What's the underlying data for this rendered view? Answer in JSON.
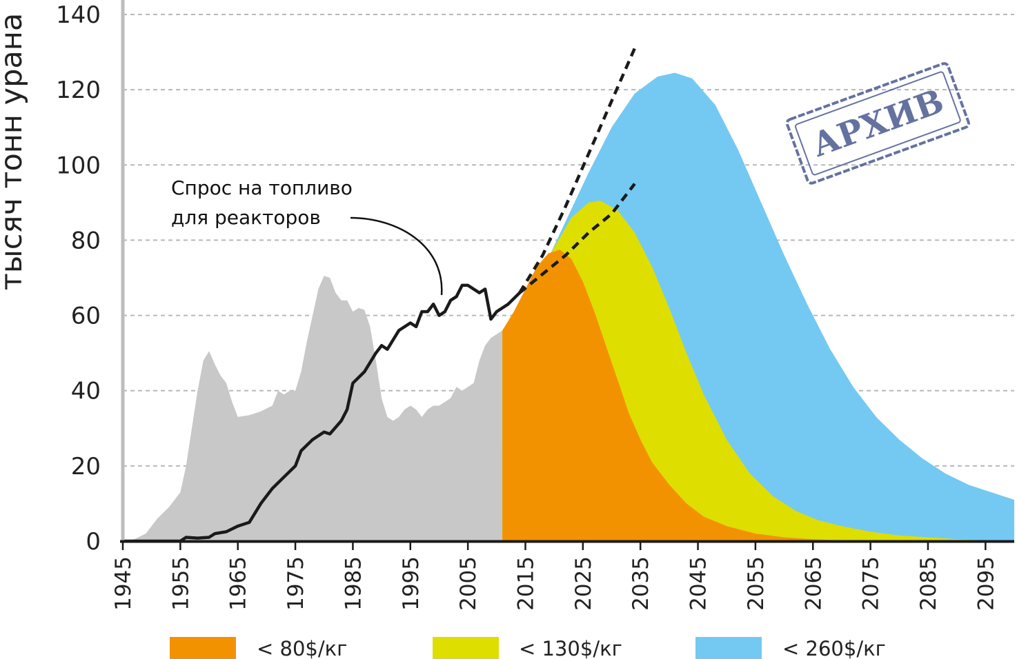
{
  "chart_data": {
    "type": "area",
    "ylabel": "тысяч тонн урана",
    "xlabel": "",
    "xlim": [
      1945,
      2100
    ],
    "ylim": [
      0,
      140
    ],
    "x_ticks": [
      "1945",
      "1955",
      "1965",
      "1975",
      "1985",
      "1995",
      "2005",
      "2015",
      "2025",
      "2035",
      "2045",
      "2055",
      "2065",
      "2075",
      "2085",
      "2095"
    ],
    "y_ticks": [
      "0",
      "20",
      "40",
      "60",
      "80",
      "100",
      "120",
      "140"
    ],
    "grid": "horizontal dashed",
    "legend_position": "bottom",
    "annotation": {
      "line1": "Спрос на топливо",
      "line2": "для реакторов"
    },
    "stamp": "АРХИВ",
    "colors": {
      "historical": "#c8c8c8",
      "lt80": "#f39200",
      "lt130": "#dede00",
      "lt260": "#74c9f2",
      "demand": "#1a1a1a",
      "stamp": "#4a5a90"
    },
    "series": [
      {
        "name": "",
        "role": "historical_production",
        "points": [
          [
            1945,
            0
          ],
          [
            1947,
            0.5
          ],
          [
            1949,
            2
          ],
          [
            1951,
            6
          ],
          [
            1953,
            9
          ],
          [
            1955,
            13
          ],
          [
            1956,
            20
          ],
          [
            1957,
            30
          ],
          [
            1958,
            40
          ],
          [
            1959,
            48
          ],
          [
            1960,
            50.5
          ],
          [
            1961,
            47
          ],
          [
            1962,
            44
          ],
          [
            1963,
            42
          ],
          [
            1964,
            37
          ],
          [
            1965,
            33
          ],
          [
            1967,
            33.5
          ],
          [
            1969,
            34.5
          ],
          [
            1971,
            36
          ],
          [
            1972,
            40
          ],
          [
            1973,
            39
          ],
          [
            1974,
            40
          ],
          [
            1975,
            40
          ],
          [
            1976,
            45
          ],
          [
            1977,
            53
          ],
          [
            1978,
            60
          ],
          [
            1979,
            67
          ],
          [
            1980,
            70.5
          ],
          [
            1981,
            70
          ],
          [
            1982,
            66
          ],
          [
            1983,
            64
          ],
          [
            1984,
            64
          ],
          [
            1985,
            61
          ],
          [
            1986,
            62
          ],
          [
            1987,
            61.5
          ],
          [
            1988,
            57
          ],
          [
            1989,
            48
          ],
          [
            1990,
            38
          ],
          [
            1991,
            33
          ],
          [
            1992,
            32
          ],
          [
            1993,
            33
          ],
          [
            1994,
            35
          ],
          [
            1995,
            36
          ],
          [
            1996,
            35
          ],
          [
            1997,
            33
          ],
          [
            1998,
            35
          ],
          [
            1999,
            36
          ],
          [
            2000,
            36
          ],
          [
            2001,
            37
          ],
          [
            2002,
            38
          ],
          [
            2003,
            41
          ],
          [
            2004,
            40
          ],
          [
            2005,
            41
          ],
          [
            2006,
            42
          ],
          [
            2007,
            48
          ],
          [
            2008,
            52
          ],
          [
            2009,
            54
          ],
          [
            2010,
            55
          ],
          [
            2011,
            56
          ]
        ]
      },
      {
        "name": "< 260$/кг",
        "points": [
          [
            2011,
            56
          ],
          [
            2014,
            62
          ],
          [
            2018,
            72
          ],
          [
            2022,
            85
          ],
          [
            2026,
            98
          ],
          [
            2030,
            110
          ],
          [
            2034,
            119
          ],
          [
            2038,
            123.5
          ],
          [
            2041,
            124.5
          ],
          [
            2044,
            123
          ],
          [
            2048,
            116
          ],
          [
            2052,
            104
          ],
          [
            2056,
            90
          ],
          [
            2060,
            76
          ],
          [
            2064,
            63
          ],
          [
            2068,
            51
          ],
          [
            2072,
            41
          ],
          [
            2076,
            33
          ],
          [
            2080,
            27
          ],
          [
            2084,
            22
          ],
          [
            2088,
            18
          ],
          [
            2092,
            15
          ],
          [
            2096,
            13
          ],
          [
            2100,
            11
          ]
        ]
      },
      {
        "name": "< 130$/кг",
        "points": [
          [
            2011,
            56
          ],
          [
            2014,
            62
          ],
          [
            2017,
            70
          ],
          [
            2020,
            78
          ],
          [
            2023,
            86
          ],
          [
            2026,
            90
          ],
          [
            2028,
            90.5
          ],
          [
            2031,
            88
          ],
          [
            2034,
            82
          ],
          [
            2037,
            73
          ],
          [
            2040,
            62
          ],
          [
            2043,
            50
          ],
          [
            2046,
            39
          ],
          [
            2050,
            27
          ],
          [
            2054,
            18
          ],
          [
            2058,
            12
          ],
          [
            2062,
            8
          ],
          [
            2066,
            5.5
          ],
          [
            2070,
            4
          ],
          [
            2075,
            2.5
          ],
          [
            2080,
            1.5
          ],
          [
            2085,
            1
          ],
          [
            2090,
            0.5
          ],
          [
            2095,
            0.2
          ],
          [
            2100,
            0
          ]
        ]
      },
      {
        "name": "< 80$/кг",
        "points": [
          [
            2011,
            56
          ],
          [
            2013,
            61
          ],
          [
            2015,
            67
          ],
          [
            2017,
            73
          ],
          [
            2019,
            76.5
          ],
          [
            2021,
            77.5
          ],
          [
            2023,
            75
          ],
          [
            2025,
            69
          ],
          [
            2027,
            61
          ],
          [
            2029,
            52
          ],
          [
            2031,
            43
          ],
          [
            2033,
            34
          ],
          [
            2035,
            27
          ],
          [
            2037,
            21
          ],
          [
            2040,
            15
          ],
          [
            2043,
            10
          ],
          [
            2046,
            6.5
          ],
          [
            2050,
            4
          ],
          [
            2055,
            2
          ],
          [
            2060,
            1
          ],
          [
            2065,
            0.5
          ],
          [
            2070,
            0.2
          ],
          [
            2075,
            0
          ]
        ]
      },
      {
        "name": "",
        "role": "reactor_demand",
        "points": [
          [
            1945,
            0
          ],
          [
            1950,
            0
          ],
          [
            1955,
            0
          ],
          [
            1956,
            1
          ],
          [
            1958,
            0.8
          ],
          [
            1960,
            1
          ],
          [
            1961,
            2
          ],
          [
            1963,
            2.5
          ],
          [
            1965,
            4
          ],
          [
            1967,
            5
          ],
          [
            1969,
            10
          ],
          [
            1971,
            14
          ],
          [
            1973,
            17
          ],
          [
            1975,
            20
          ],
          [
            1976,
            24
          ],
          [
            1978,
            27
          ],
          [
            1980,
            29
          ],
          [
            1981,
            28.5
          ],
          [
            1983,
            32
          ],
          [
            1984,
            35
          ],
          [
            1985,
            42
          ],
          [
            1987,
            45
          ],
          [
            1989,
            50
          ],
          [
            1990,
            52
          ],
          [
            1991,
            51
          ],
          [
            1993,
            56
          ],
          [
            1995,
            58
          ],
          [
            1996,
            57
          ],
          [
            1997,
            61
          ],
          [
            1998,
            61
          ],
          [
            1999,
            63
          ],
          [
            2000,
            60
          ],
          [
            2001,
            61
          ],
          [
            2002,
            64
          ],
          [
            2003,
            65
          ],
          [
            2004,
            68
          ],
          [
            2005,
            68
          ],
          [
            2006,
            67
          ],
          [
            2007,
            66
          ],
          [
            2008,
            67
          ],
          [
            2009,
            59
          ],
          [
            2010,
            61
          ],
          [
            2012,
            63
          ],
          [
            2014,
            66
          ]
        ]
      },
      {
        "name": "",
        "role": "demand_projection_high",
        "points": [
          [
            2014,
            66
          ],
          [
            2018,
            76
          ],
          [
            2022,
            89
          ],
          [
            2026,
            103
          ],
          [
            2030,
            117
          ],
          [
            2034,
            131
          ]
        ]
      },
      {
        "name": "",
        "role": "demand_projection_low",
        "points": [
          [
            2014,
            66
          ],
          [
            2018,
            71
          ],
          [
            2022,
            76
          ],
          [
            2026,
            82
          ],
          [
            2030,
            87
          ],
          [
            2034,
            95
          ]
        ]
      }
    ]
  }
}
